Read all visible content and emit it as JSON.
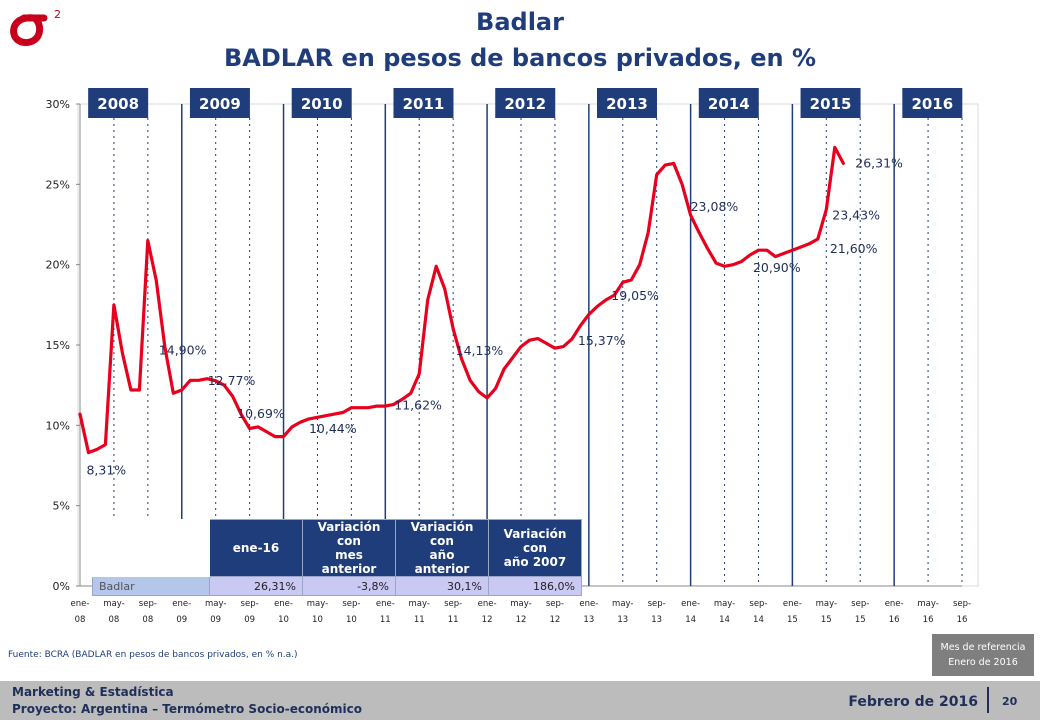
{
  "header": {
    "logo_superscript": "2",
    "title": "Badlar",
    "subtitle": "BADLAR en pesos de bancos privados, en %"
  },
  "chart_data": {
    "type": "line",
    "title": "Badlar",
    "subtitle": "BADLAR en pesos de bancos privados, en %",
    "ylim": [
      0,
      30
    ],
    "yticks": [
      "0%",
      "5%",
      "10%",
      "15%",
      "20%",
      "25%",
      "30%"
    ],
    "x_tick_labels": [
      [
        "ene-",
        "08"
      ],
      [
        "may-",
        "08"
      ],
      [
        "sep-",
        "08"
      ],
      [
        "ene-",
        "09"
      ],
      [
        "may-",
        "09"
      ],
      [
        "sep-",
        "09"
      ],
      [
        "ene-",
        "10"
      ],
      [
        "may-",
        "10"
      ],
      [
        "sep-",
        "10"
      ],
      [
        "ene-",
        "11"
      ],
      [
        "may-",
        "11"
      ],
      [
        "sep-",
        "11"
      ],
      [
        "ene-",
        "12"
      ],
      [
        "may-",
        "12"
      ],
      [
        "sep-",
        "12"
      ],
      [
        "ene-",
        "13"
      ],
      [
        "may-",
        "13"
      ],
      [
        "sep-",
        "13"
      ],
      [
        "ene-",
        "14"
      ],
      [
        "may-",
        "14"
      ],
      [
        "sep-",
        "14"
      ],
      [
        "ene-",
        "15"
      ],
      [
        "may-",
        "15"
      ],
      [
        "sep-",
        "15"
      ],
      [
        "ene-",
        "16"
      ],
      [
        "may-",
        "16"
      ],
      [
        "sep-",
        "16"
      ]
    ],
    "year_labels": [
      "2008",
      "2009",
      "2010",
      "2011",
      "2012",
      "2013",
      "2014",
      "2015",
      "2016"
    ],
    "series": [
      {
        "name": "Badlar",
        "color": "#e8001c",
        "start": "ene-08",
        "values": [
          10.7,
          8.3,
          8.5,
          8.8,
          17.5,
          14.5,
          12.2,
          12.2,
          21.5,
          19.0,
          14.9,
          12.0,
          12.2,
          12.8,
          12.8,
          12.9,
          12.77,
          12.5,
          11.8,
          10.69,
          9.8,
          9.9,
          9.6,
          9.3,
          9.3,
          9.9,
          10.2,
          10.4,
          10.5,
          10.6,
          10.7,
          10.8,
          11.1,
          11.1,
          11.1,
          11.2,
          11.2,
          11.3,
          11.62,
          12.0,
          13.2,
          17.8,
          19.9,
          18.5,
          16.0,
          14.13,
          12.8,
          12.1,
          11.7,
          12.3,
          13.5,
          14.2,
          14.9,
          15.3,
          15.4,
          15.1,
          14.8,
          14.9,
          15.37,
          16.2,
          16.9,
          17.4,
          17.8,
          18.1,
          18.9,
          19.05,
          20.0,
          22.0,
          25.6,
          26.2,
          26.3,
          25.0,
          23.08,
          22.0,
          21.0,
          20.1,
          19.9,
          20.0,
          20.2,
          20.6,
          20.9,
          20.9,
          20.5,
          20.7,
          20.9,
          21.1,
          21.3,
          21.6,
          23.43,
          27.3,
          26.31
        ]
      }
    ],
    "data_labels": [
      {
        "text": "8,31%",
        "index": 1
      },
      {
        "text": "14,90%",
        "index": 10
      },
      {
        "text": "12,77%",
        "index": 16
      },
      {
        "text": "10,69%",
        "index": 19
      },
      {
        "text": "10,44%",
        "index": 27
      },
      {
        "text": "11,62%",
        "index": 38
      },
      {
        "text": "14,13%",
        "index": 45
      },
      {
        "text": "15,37%",
        "index": 58
      },
      {
        "text": "19,05%",
        "index": 65
      },
      {
        "text": "23,08%",
        "index": 72
      },
      {
        "text": "20,90%",
        "index": 81
      },
      {
        "text": "21,60%",
        "index": 87
      },
      {
        "text": "23,43%",
        "index": 88
      },
      {
        "text": "26,31%",
        "index": 90
      }
    ]
  },
  "table": {
    "headers": [
      "ene-16",
      "Variación con mes anterior",
      "Variación con año anterior",
      "Variación con año 2007"
    ],
    "header_lines": [
      [
        "ene-16"
      ],
      [
        "Variación con",
        "mes anterior"
      ],
      [
        "Variación con",
        "año anterior"
      ],
      [
        "Variación con",
        "año 2007"
      ]
    ],
    "row_label": "Badlar",
    "row_values": [
      "26,31%",
      "-3,8%",
      "30,1%",
      "186,0%"
    ]
  },
  "source": "Fuente: BCRA (BADLAR en pesos de bancos privados, en % n.a.)",
  "reference": {
    "line1": "Mes de referencia",
    "line2": "Enero de 2016"
  },
  "footer": {
    "line1": "Marketing & Estadística",
    "line2": "Proyecto: Argentina – Termómetro Socio-económico",
    "date": "Febrero de 2016",
    "page": "20"
  }
}
